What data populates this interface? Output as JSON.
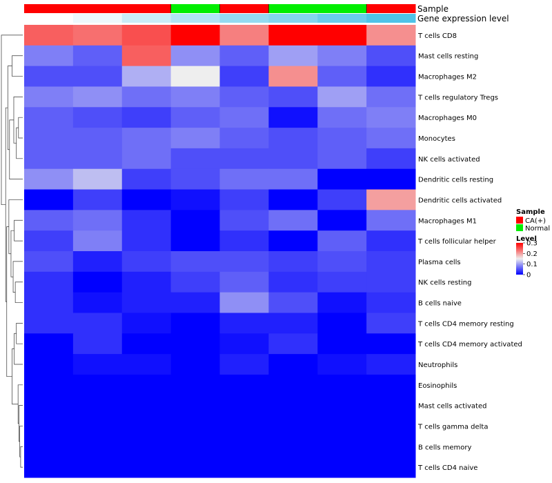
{
  "chart_data": {
    "type": "heatmap",
    "annotation_rows": [
      "Sample",
      "Gene expression level"
    ],
    "columns": [
      {
        "sample": "CA(+)",
        "expression": 0.0
      },
      {
        "sample": "CA(+)",
        "expression": 0.1
      },
      {
        "sample": "CA(+)",
        "expression": 0.3
      },
      {
        "sample": "Normal",
        "expression": 0.45
      },
      {
        "sample": "CA(+)",
        "expression": 0.6
      },
      {
        "sample": "Normal",
        "expression": 0.7
      },
      {
        "sample": "Normal",
        "expression": 0.85
      },
      {
        "sample": "CA(+)",
        "expression": 1.0
      }
    ],
    "rows": [
      "T cells CD8",
      "Mast cells resting",
      "Macrophages M2",
      "T cells regulatory  Tregs",
      "Macrophages M0",
      "Monocytes",
      "NK cells activated",
      "Dendritic cells resting",
      "Dendritic cells activated",
      "Macrophages M1",
      "T cells follicular helper",
      "Plasma cells",
      "NK cells resting",
      "B cells naive",
      "T cells CD4 memory resting",
      "T cells CD4 memory activated",
      "Neutrophils",
      "Eosinophils",
      "Mast cells activated",
      "T cells gamma delta",
      "B cells memory",
      "T cells CD4 naive"
    ],
    "values": [
      [
        0.24,
        0.23,
        0.25,
        0.3,
        0.22,
        0.3,
        0.3,
        0.21
      ],
      [
        0.08,
        0.06,
        0.24,
        0.09,
        0.06,
        0.1,
        0.08,
        0.05
      ],
      [
        0.05,
        0.05,
        0.11,
        0.15,
        0.04,
        0.21,
        0.06,
        0.03
      ],
      [
        0.08,
        0.09,
        0.07,
        0.08,
        0.06,
        0.05,
        0.1,
        0.07
      ],
      [
        0.06,
        0.05,
        0.04,
        0.06,
        0.07,
        0.01,
        0.07,
        0.08
      ],
      [
        0.06,
        0.06,
        0.07,
        0.08,
        0.06,
        0.05,
        0.06,
        0.07
      ],
      [
        0.06,
        0.06,
        0.07,
        0.05,
        0.05,
        0.05,
        0.06,
        0.04
      ],
      [
        0.09,
        0.12,
        0.04,
        0.05,
        0.07,
        0.07,
        0.0,
        0.0
      ],
      [
        0.0,
        0.04,
        0.0,
        0.01,
        0.04,
        0.0,
        0.04,
        0.2
      ],
      [
        0.06,
        0.07,
        0.03,
        0.0,
        0.05,
        0.07,
        0.0,
        0.07
      ],
      [
        0.04,
        0.08,
        0.03,
        0.0,
        0.03,
        0.0,
        0.06,
        0.03
      ],
      [
        0.05,
        0.02,
        0.04,
        0.05,
        0.05,
        0.04,
        0.05,
        0.04
      ],
      [
        0.03,
        0.0,
        0.02,
        0.04,
        0.06,
        0.03,
        0.04,
        0.04
      ],
      [
        0.03,
        0.01,
        0.02,
        0.02,
        0.09,
        0.05,
        0.01,
        0.03
      ],
      [
        0.03,
        0.03,
        0.01,
        0.0,
        0.02,
        0.02,
        0.0,
        0.04
      ],
      [
        0.0,
        0.03,
        0.0,
        0.0,
        0.01,
        0.03,
        0.0,
        0.0
      ],
      [
        0.0,
        0.01,
        0.01,
        0.0,
        0.02,
        0.0,
        0.01,
        0.02
      ],
      [
        0.0,
        0.0,
        0.0,
        0.0,
        0.0,
        0.0,
        0.0,
        0.0
      ],
      [
        0.0,
        0.0,
        0.0,
        0.0,
        0.0,
        0.0,
        0.0,
        0.0
      ],
      [
        0.0,
        0.0,
        0.0,
        0.0,
        0.0,
        0.0,
        0.0,
        0.0
      ],
      [
        0.0,
        0.0,
        0.0,
        0.0,
        0.0,
        0.0,
        0.0,
        0.0
      ],
      [
        0.0,
        0.0,
        0.0,
        0.0,
        0.0,
        0.0,
        0.0,
        0.0
      ]
    ],
    "color_scale": {
      "min": 0,
      "max": 0.3,
      "low": "#0000ff",
      "mid": "#eeeeee",
      "high": "#ff0000",
      "mid_value": 0.15
    },
    "legend": {
      "sample_title": "Sample",
      "sample_entries": [
        {
          "label": "CA(+)",
          "color": "#ff0000"
        },
        {
          "label": "Normal",
          "color": "#00ee00"
        }
      ],
      "level_title": "Level",
      "level_ticks": [
        "0.3",
        "0.2",
        "0.1",
        "0"
      ],
      "level_tick_values": [
        0.3,
        0.2,
        0.1,
        0
      ],
      "position": "right"
    },
    "expression_colors": {
      "low": "#ffffff",
      "high": "#4fc3e8"
    },
    "dendrogram": "row",
    "grid": false
  }
}
